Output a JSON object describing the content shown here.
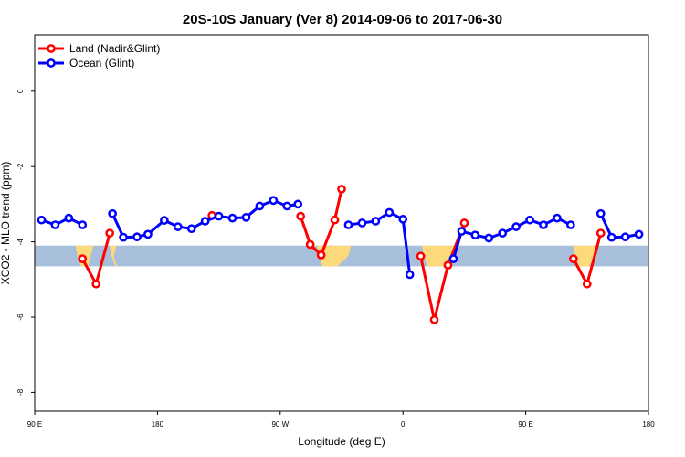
{
  "chart_data": {
    "type": "line",
    "title": "20S-10S January (Ver 8)   2014-09-06 to 2017-06-30",
    "xlabel": "Longitude (deg E)",
    "ylabel": "XCO2 - MLO trend (ppm)",
    "xlim": [
      90,
      540
    ],
    "ylim": [
      -8.5,
      1.5
    ],
    "x_ticks": [
      {
        "value": 90,
        "label": "90 E"
      },
      {
        "value": 180,
        "label": "180"
      },
      {
        "value": 270,
        "label": "90 W"
      },
      {
        "value": 360,
        "label": "0"
      },
      {
        "value": 450,
        "label": "90 E"
      },
      {
        "value": 540,
        "label": "180"
      }
    ],
    "y_ticks": [
      {
        "value": 0,
        "label": "0"
      },
      {
        "value": -2,
        "label": "-2"
      },
      {
        "value": -4,
        "label": "-4"
      },
      {
        "value": -6,
        "label": "-6"
      },
      {
        "value": -8,
        "label": "-8"
      }
    ],
    "grid": false,
    "legend_position": "top-left",
    "map_band": {
      "ymin": -4.65,
      "ymax": -4.1,
      "ocean_color": "#a8bfdc",
      "land_color": "#fcd97a"
    },
    "series": [
      {
        "name": "Land (Nadir&Glint)",
        "color": "#ff0000",
        "segments": [
          [
            [
              125,
              -4.45
            ],
            [
              135,
              -5.12
            ],
            [
              145,
              -3.77
            ]
          ],
          [
            [
              220,
              -3.3
            ]
          ],
          [
            [
              285,
              -3.32
            ],
            [
              292,
              -4.07
            ],
            [
              300,
              -4.35
            ],
            [
              310,
              -3.42
            ],
            [
              315,
              -2.6
            ]
          ],
          [
            [
              373,
              -4.38
            ],
            [
              383,
              -6.07
            ],
            [
              393,
              -4.62
            ],
            [
              405,
              -3.5
            ]
          ],
          [
            [
              485,
              -4.45
            ],
            [
              495,
              -5.12
            ],
            [
              505,
              -3.77
            ]
          ]
        ]
      },
      {
        "name": "Ocean (Glint)",
        "color": "#0000ff",
        "segments": [
          [
            [
              95,
              -3.42
            ],
            [
              105,
              -3.55
            ],
            [
              115,
              -3.37
            ],
            [
              125,
              -3.55
            ]
          ],
          [
            [
              147,
              -3.25
            ],
            [
              155,
              -3.88
            ],
            [
              165,
              -3.87
            ],
            [
              173,
              -3.8
            ],
            [
              185,
              -3.43
            ],
            [
              195,
              -3.6
            ],
            [
              205,
              -3.65
            ],
            [
              215,
              -3.45
            ],
            [
              225,
              -3.32
            ],
            [
              235,
              -3.37
            ],
            [
              245,
              -3.35
            ],
            [
              255,
              -3.05
            ],
            [
              265,
              -2.9
            ],
            [
              275,
              -3.05
            ],
            [
              283,
              -3.0
            ]
          ],
          [
            [
              320,
              -3.55
            ],
            [
              330,
              -3.5
            ],
            [
              340,
              -3.45
            ],
            [
              350,
              -3.22
            ],
            [
              360,
              -3.4
            ],
            [
              365,
              -4.87
            ]
          ],
          [
            [
              397,
              -4.45
            ],
            [
              403,
              -3.72
            ],
            [
              413,
              -3.82
            ],
            [
              423,
              -3.9
            ],
            [
              433,
              -3.77
            ],
            [
              443,
              -3.6
            ],
            [
              453,
              -3.42
            ],
            [
              463,
              -3.55
            ],
            [
              473,
              -3.37
            ],
            [
              483,
              -3.55
            ]
          ],
          [
            [
              505,
              -3.25
            ],
            [
              513,
              -3.88
            ],
            [
              523,
              -3.87
            ],
            [
              533,
              -3.8
            ]
          ]
        ]
      }
    ]
  }
}
